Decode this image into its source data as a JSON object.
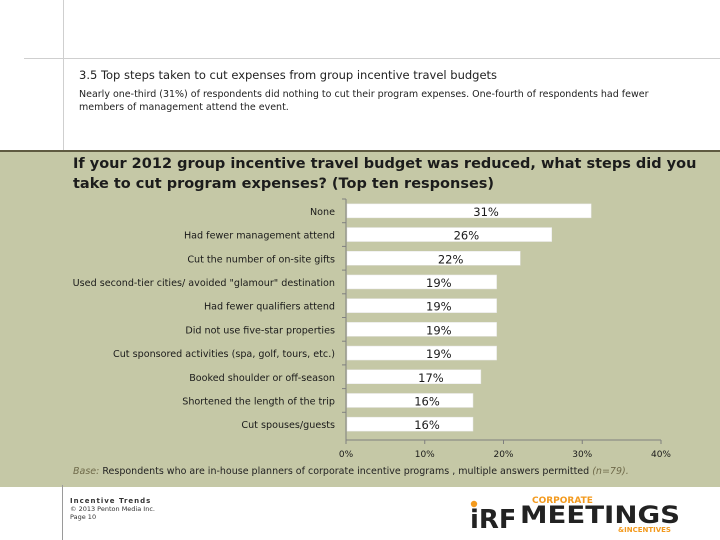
{
  "header": {
    "section_title": "3.5 Top steps taken to cut expenses from group incentive travel budgets",
    "description": "Nearly one-third (31%) of respondents did nothing to cut their program expenses. One-fourth of respondents had fewer members of management attend the event."
  },
  "question": "If your 2012 group incentive travel budget was reduced, what steps did you take to cut program expenses? (Top ten responses)",
  "base": {
    "label": "Base:",
    "text": "Respondents who are in-house planners of corporate incentive programs , multiple answers permitted",
    "n": "(n=79)."
  },
  "footer": {
    "brand": "Incentive Trends",
    "copyright": "© 2013 Penton Media Inc.",
    "page": "Page 10"
  },
  "logos": {
    "irf": "iRF",
    "corporate": "CORPORATE",
    "meetings": "MEETINGS",
    "incentives": "&INCENTIVES"
  },
  "colors": {
    "bar": "#ffffff",
    "bar_edge": "#e6e6e6",
    "panel": "#c5c8a6",
    "panel_border": "#5f5a41",
    "logo_orange": "#f39a1e"
  },
  "chart_data": {
    "type": "bar",
    "orientation": "horizontal",
    "categories": [
      "None",
      "Had fewer management attend",
      "Cut the number of on-site gifts",
      "Used second-tier cities/ avoided \"glamour\" destination",
      "Had fewer qualifiers attend",
      "Did not use five-star properties",
      "Cut sponsored activities (spa, golf, tours, etc.)",
      "Booked shoulder or off-season",
      "Shortened the length of the trip",
      "Cut spouses/guests"
    ],
    "values": [
      31,
      26,
      22,
      19,
      19,
      19,
      19,
      17,
      16,
      16
    ],
    "data_labels": [
      "31%",
      "26%",
      "22%",
      "19%",
      "19%",
      "19%",
      "19%",
      "17%",
      "16%",
      "16%"
    ],
    "xlim": [
      0,
      40
    ],
    "x_ticks": [
      0,
      10,
      20,
      30,
      40
    ],
    "x_tick_labels": [
      "0%",
      "10%",
      "20%",
      "30%",
      "40%"
    ],
    "grid": false,
    "legend": "none"
  }
}
